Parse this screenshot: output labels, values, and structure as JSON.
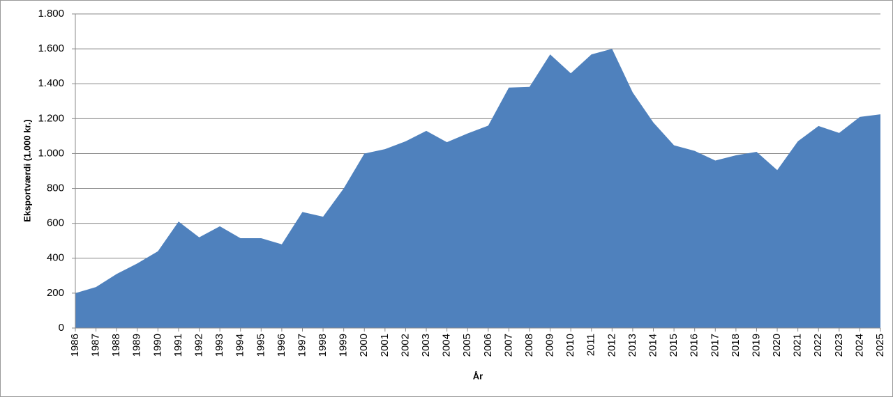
{
  "chart_data": {
    "type": "area",
    "x_label": "År",
    "y_label": "Eksportværdi (1.000 kr.)",
    "categories": [
      "1986",
      "1987",
      "1988",
      "1989",
      "1990",
      "1991",
      "1992",
      "1993",
      "1994",
      "1995",
      "1996",
      "1997",
      "1998",
      "1999",
      "2000",
      "2001",
      "2002",
      "2003",
      "2004",
      "2005",
      "2006",
      "2007",
      "2008",
      "2009",
      "2010",
      "2011",
      "2012",
      "2013",
      "2014",
      "2015",
      "2016",
      "2017",
      "2018",
      "2019",
      "2020",
      "2021",
      "2022",
      "2023",
      "2024",
      "2025"
    ],
    "values": [
      200,
      235,
      310,
      370,
      440,
      610,
      520,
      583,
      515,
      515,
      480,
      665,
      638,
      800,
      1000,
      1025,
      1070,
      1130,
      1065,
      1115,
      1160,
      1378,
      1382,
      1568,
      1460,
      1568,
      1600,
      1350,
      1178,
      1047,
      1015,
      960,
      990,
      1010,
      905,
      1070,
      1158,
      1118,
      1210,
      1225
    ],
    "color": "#4f81bd",
    "ylim": [
      0,
      1800
    ],
    "yticks": [
      0,
      200,
      400,
      600,
      800,
      {
        "value": 1000,
        "label": "1.000"
      },
      {
        "value": 1200,
        "label": "1.200"
      },
      {
        "value": 1400,
        "label": "1.400"
      },
      {
        "value": 1600,
        "label": "1.600"
      },
      {
        "value": 1800,
        "label": "1.800"
      }
    ],
    "grid": true
  }
}
